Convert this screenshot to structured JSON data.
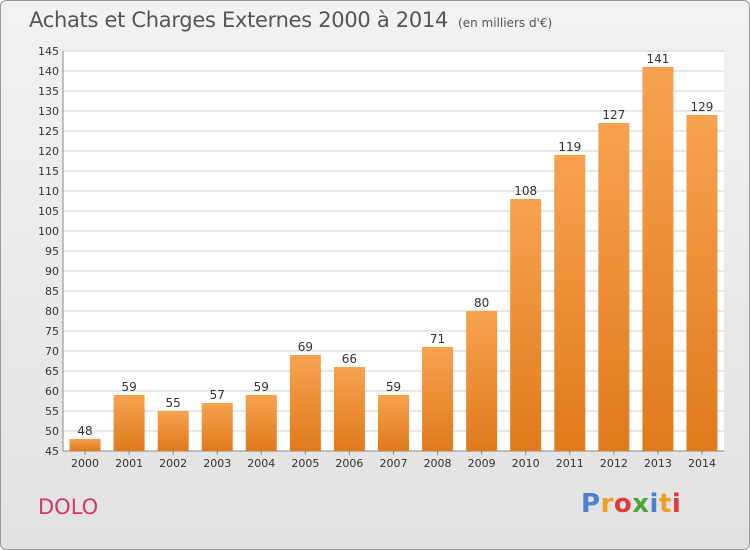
{
  "title": "Achats et Charges Externes 2000 à 2014",
  "subtitle": "(en milliers d'€)",
  "commune": "DOLO",
  "logo": {
    "text": "Proxiti",
    "letter_colors": [
      "#4c7fd0",
      "#f0a020",
      "#e03a3a",
      "#4aa63a",
      "#4c7fd0",
      "#f0a020",
      "#e03a3a"
    ]
  },
  "colors": {
    "bar_light": "#f7a24f",
    "bar_dark": "#e07a1c",
    "grid": "#cfcfcf",
    "text": "#333333"
  },
  "chart_data": {
    "type": "bar",
    "title": "Achats et Charges Externes 2000 à 2014",
    "subtitle": "(en milliers d'€)",
    "categories": [
      "2000",
      "2001",
      "2002",
      "2003",
      "2004",
      "2005",
      "2006",
      "2007",
      "2008",
      "2009",
      "2010",
      "2011",
      "2012",
      "2013",
      "2014"
    ],
    "values": [
      48,
      59,
      55,
      57,
      59,
      69,
      66,
      59,
      71,
      80,
      108,
      119,
      127,
      141,
      129
    ],
    "ylim": [
      45,
      145
    ],
    "yticks": [
      45,
      50,
      55,
      60,
      65,
      70,
      75,
      80,
      85,
      90,
      95,
      100,
      105,
      110,
      115,
      120,
      125,
      130,
      135,
      140,
      145
    ],
    "grid": true,
    "data_labels": true
  }
}
